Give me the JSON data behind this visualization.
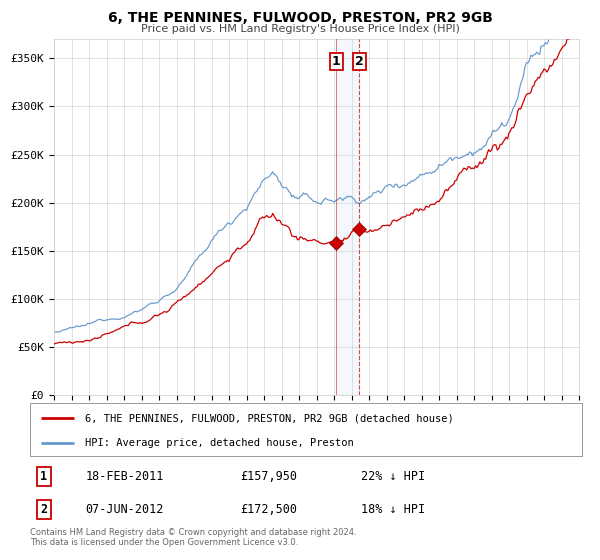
{
  "title": "6, THE PENNINES, FULWOOD, PRESTON, PR2 9GB",
  "subtitle": "Price paid vs. HM Land Registry's House Price Index (HPI)",
  "legend_line1": "6, THE PENNINES, FULWOOD, PRESTON, PR2 9GB (detached house)",
  "legend_line2": "HPI: Average price, detached house, Preston",
  "transaction1_date": "18-FEB-2011",
  "transaction1_price": 157950,
  "transaction1_hpi": "22% ↓ HPI",
  "transaction2_date": "07-JUN-2012",
  "transaction2_price": 172500,
  "transaction2_hpi": "18% ↓ HPI",
  "transaction1_x": 2011.13,
  "transaction2_x": 2012.44,
  "red_color": "#cc0000",
  "blue_color": "#6699cc",
  "background_color": "#ffffff",
  "grid_color": "#cccccc",
  "footer_text": "Contains HM Land Registry data © Crown copyright and database right 2024.\nThis data is licensed under the Open Government Licence v3.0.",
  "ylim": [
    0,
    370000
  ],
  "xlim_start": 1995,
  "xlim_end": 2025,
  "yticks": [
    0,
    50000,
    100000,
    150000,
    200000,
    250000,
    300000,
    350000
  ],
  "ytick_labels": [
    "£0",
    "£50K",
    "£100K",
    "£150K",
    "£200K",
    "£250K",
    "£300K",
    "£350K"
  ]
}
